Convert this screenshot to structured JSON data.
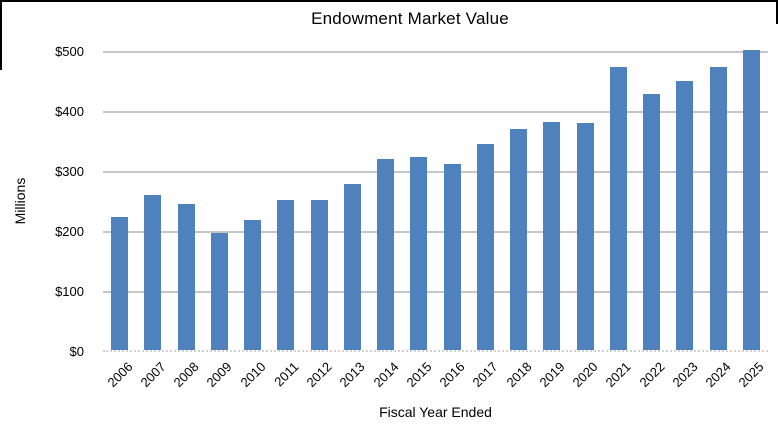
{
  "chart": {
    "title": "Endowment Market Value",
    "y_axis_title": "Millions",
    "x_axis_title": "Fiscal Year Ended",
    "colors": {
      "bar": "#4F81BD",
      "gridline": "#c6c6c6",
      "baseline": "#d4d2d0",
      "frame_border": "#000000",
      "text": "#000000"
    }
  },
  "chart_data": {
    "type": "bar",
    "title": "Endowment Market Value",
    "xlabel": "Fiscal Year Ended",
    "ylabel": "Millions",
    "categories": [
      "2006",
      "2007",
      "2008",
      "2009",
      "2010",
      "2011",
      "2012",
      "2013",
      "2014",
      "2015",
      "2016",
      "2017",
      "2018",
      "2019",
      "2020",
      "2021",
      "2022",
      "2023",
      "2024",
      "2025"
    ],
    "values": [
      222,
      258,
      243,
      195,
      217,
      250,
      250,
      277,
      318,
      321,
      310,
      343,
      368,
      380,
      378,
      472,
      426,
      449,
      471,
      500
    ],
    "series_name": "Endowment Market Value",
    "ylim": [
      0,
      500
    ],
    "yticks": [
      0,
      100,
      200,
      300,
      400,
      500
    ],
    "ytick_labels": [
      "$0",
      "$100",
      "$200",
      "$300",
      "$400",
      "$500"
    ],
    "grid": true,
    "legend": false,
    "bar_color": "#4F81BD"
  }
}
